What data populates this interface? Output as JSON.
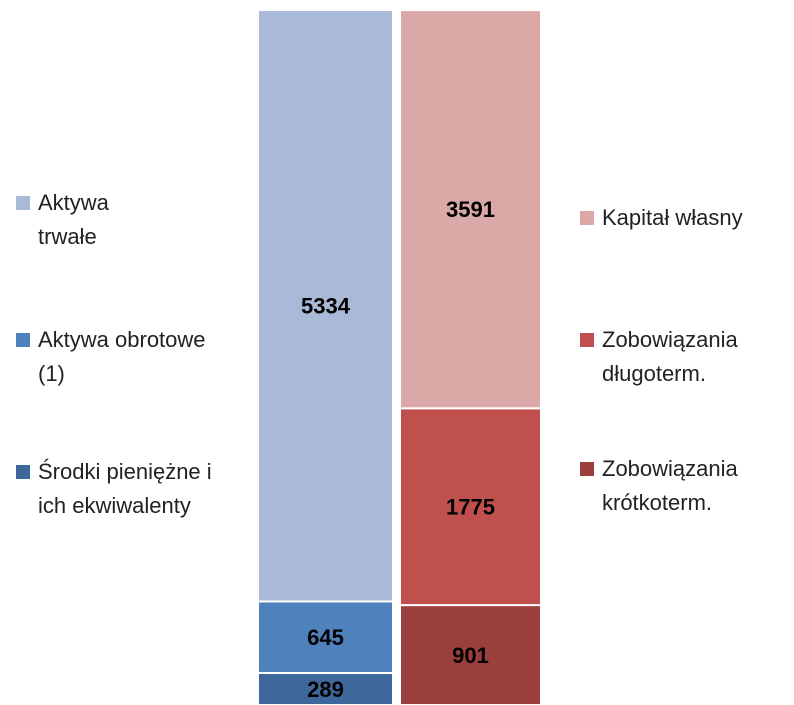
{
  "chart_data": {
    "type": "stacked-bar",
    "categories": [
      null,
      null
    ],
    "series": [
      {
        "name": "Środki pieniężne i ich ekwiwalenty",
        "color": "#3e689b",
        "values": [
          289,
          null
        ]
      },
      {
        "name": "Aktywa obrotowe (1)",
        "color": "#4f81bd",
        "values": [
          645,
          null
        ]
      },
      {
        "name": "Aktywa trwałe",
        "color": "#a9b9d7",
        "values": [
          5334,
          null
        ]
      },
      {
        "name": "Zobowiązania krótkoterm.",
        "color": "#9b3f3d",
        "values": [
          null,
          901
        ]
      },
      {
        "name": "Zobowiązania długoterm.",
        "color": "#c0504d",
        "values": [
          null,
          1775
        ]
      },
      {
        "name": "Kapitał własny",
        "color": "#d9a8a7",
        "values": [
          null,
          3591
        ]
      }
    ]
  }
}
